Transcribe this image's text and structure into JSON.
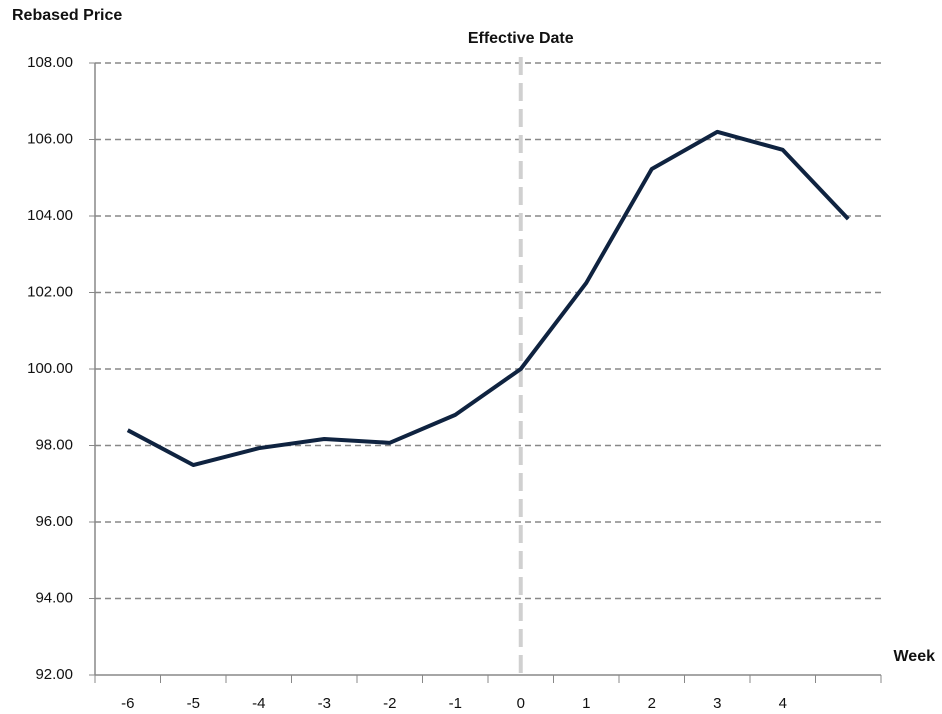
{
  "chart_data": {
    "type": "line",
    "y_label": "Rebased Price",
    "x_label": "Week",
    "annotation": {
      "label": "Effective Date",
      "x": "0"
    },
    "categories": [
      "-6",
      "-5",
      "-4",
      "-3",
      "-2",
      "-1",
      "0",
      "1",
      "2",
      "3",
      "4",
      null
    ],
    "series": [
      {
        "name": "Rebased Price",
        "color": "#0f2340",
        "values": [
          98.4,
          97.49,
          97.93,
          98.17,
          98.07,
          98.8,
          100.0,
          102.25,
          105.23,
          106.2,
          105.73,
          103.92
        ]
      }
    ],
    "ylim": [
      92,
      108
    ],
    "yticks": [
      {
        "value": 92,
        "label": "92.00"
      },
      {
        "value": 94,
        "label": "94.00"
      },
      {
        "value": 96,
        "label": "96.00"
      },
      {
        "value": 98,
        "label": "98.00"
      },
      {
        "value": 100,
        "label": "100.00"
      },
      {
        "value": 102,
        "label": "102.00"
      },
      {
        "value": 104,
        "label": "104.00"
      },
      {
        "value": 106,
        "label": "106.00"
      },
      {
        "value": 108,
        "label": "108.00"
      }
    ],
    "grid": true
  }
}
